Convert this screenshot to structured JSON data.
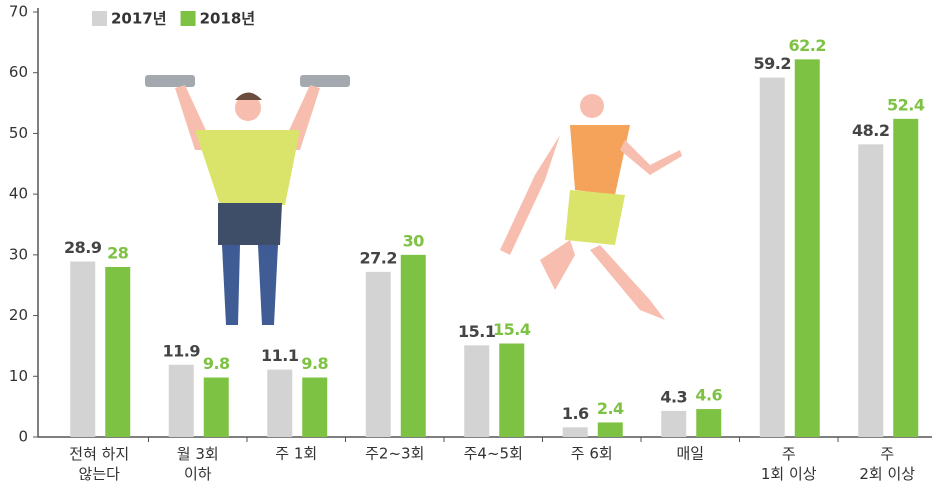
{
  "chart_data": {
    "type": "bar",
    "categories": [
      "전혀 하지\n않는다",
      "월 3회\n이하",
      "주 1회",
      "주2~3회",
      "주4~5회",
      "주 6회",
      "매일",
      "주\n1회 이상",
      "주\n2회 이상"
    ],
    "series": [
      {
        "name": "2017년",
        "color": "#d3d3d3",
        "values": [
          28.9,
          11.9,
          11.1,
          27.2,
          15.1,
          1.6,
          4.3,
          59.2,
          48.2
        ]
      },
      {
        "name": "2018년",
        "color": "#7dc242",
        "values": [
          28.0,
          9.8,
          9.8,
          30.0,
          15.4,
          2.4,
          4.6,
          62.2,
          52.4
        ]
      }
    ],
    "ylim": [
      0,
      70
    ],
    "yticks": [
      0,
      10,
      20,
      30,
      40,
      50,
      60,
      70
    ],
    "grid": false
  }
}
